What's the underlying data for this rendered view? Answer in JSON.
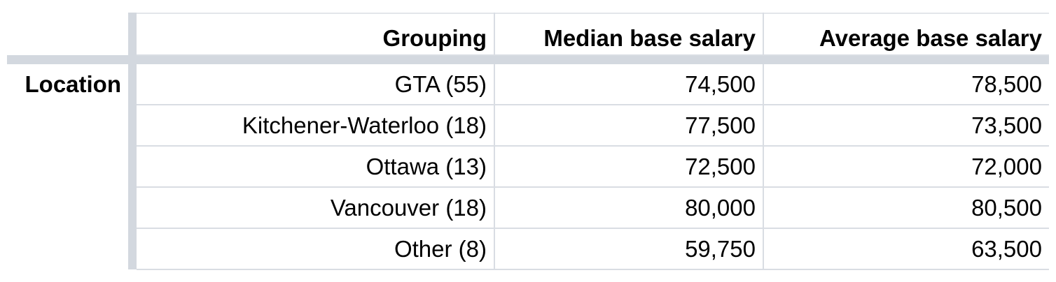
{
  "table": {
    "row_group_label": "Location",
    "headers": [
      "Grouping",
      "Median base salary",
      "Average base salary"
    ],
    "rows": [
      {
        "grouping": "GTA (55)",
        "median": "74,500",
        "average": "78,500"
      },
      {
        "grouping": "Kitchener-Waterloo (18)",
        "median": "77,500",
        "average": "73,500"
      },
      {
        "grouping": "Ottawa (13)",
        "median": "72,500",
        "average": "72,000"
      },
      {
        "grouping": "Vancouver (18)",
        "median": "80,000",
        "average": "80,500"
      },
      {
        "grouping": "Other (8)",
        "median": "59,750",
        "average": "63,500"
      }
    ]
  },
  "colors": {
    "frozen_separator": "#d3d8df",
    "grid_line": "#d9dde3",
    "text": "#000000",
    "background": "#ffffff"
  }
}
